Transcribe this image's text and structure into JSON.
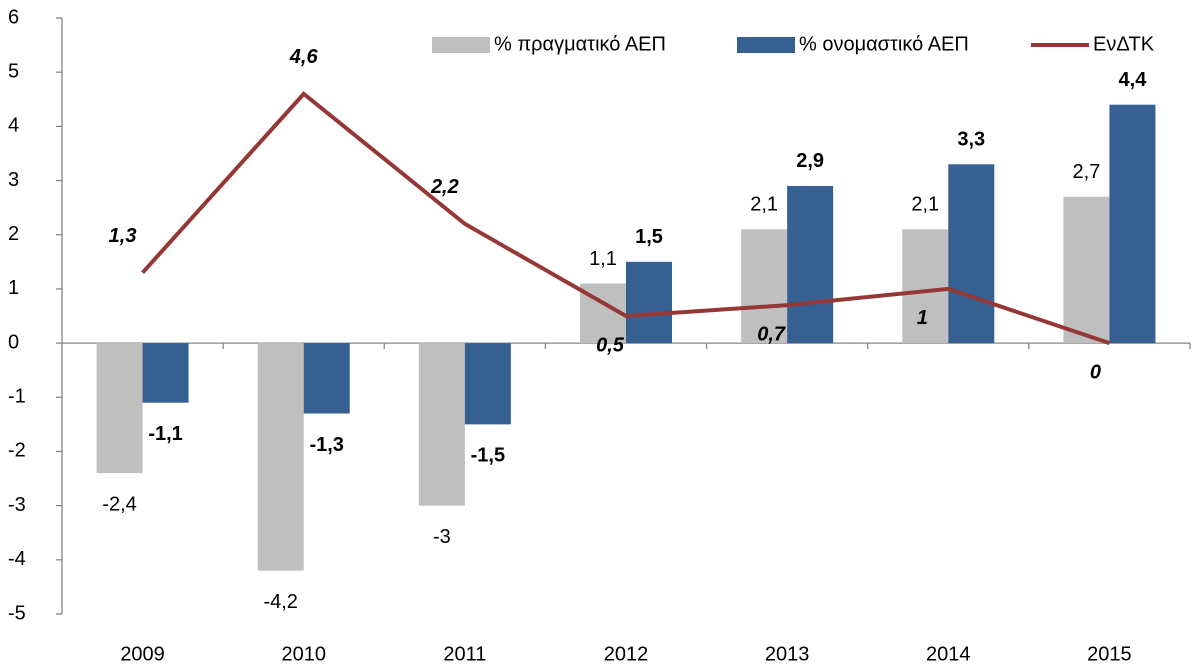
{
  "chart_data": {
    "type": "bar",
    "categories": [
      "2009",
      "2010",
      "2011",
      "2012",
      "2013",
      "2014",
      "2015"
    ],
    "series": [
      {
        "name": "% πραγματικό ΑΕΠ",
        "color": "#bfbfbf",
        "type": "bar",
        "values": [
          -2.4,
          -4.2,
          -3,
          1.1,
          2.1,
          2.1,
          2.7
        ],
        "value_labels": [
          "-2,4",
          "-4,2",
          "-3",
          "1,1",
          "2,1",
          "2,1",
          "2,7"
        ]
      },
      {
        "name": "% ονομαστικό ΑΕΠ",
        "color": "#366092",
        "type": "bar",
        "values": [
          -1.1,
          -1.3,
          -1.5,
          1.5,
          2.9,
          3.3,
          4.4
        ],
        "value_labels": [
          "-1,1",
          "-1,3",
          "-1,5",
          "1,5",
          "2,9",
          "3,3",
          "4,4"
        ]
      },
      {
        "name": "ΕνΔΤΚ",
        "color": "#953735",
        "type": "line",
        "values": [
          1.3,
          4.6,
          2.2,
          0.5,
          0.7,
          1,
          0
        ],
        "value_labels": [
          "1,3",
          "4,6",
          "2,2",
          "0,5",
          "0,7",
          "1",
          "0"
        ]
      }
    ],
    "ylim": [
      -5,
      6
    ],
    "yticks": [
      -5,
      -4,
      -3,
      -2,
      -1,
      0,
      1,
      2,
      3,
      4,
      5,
      6
    ],
    "legend": "top-right"
  }
}
